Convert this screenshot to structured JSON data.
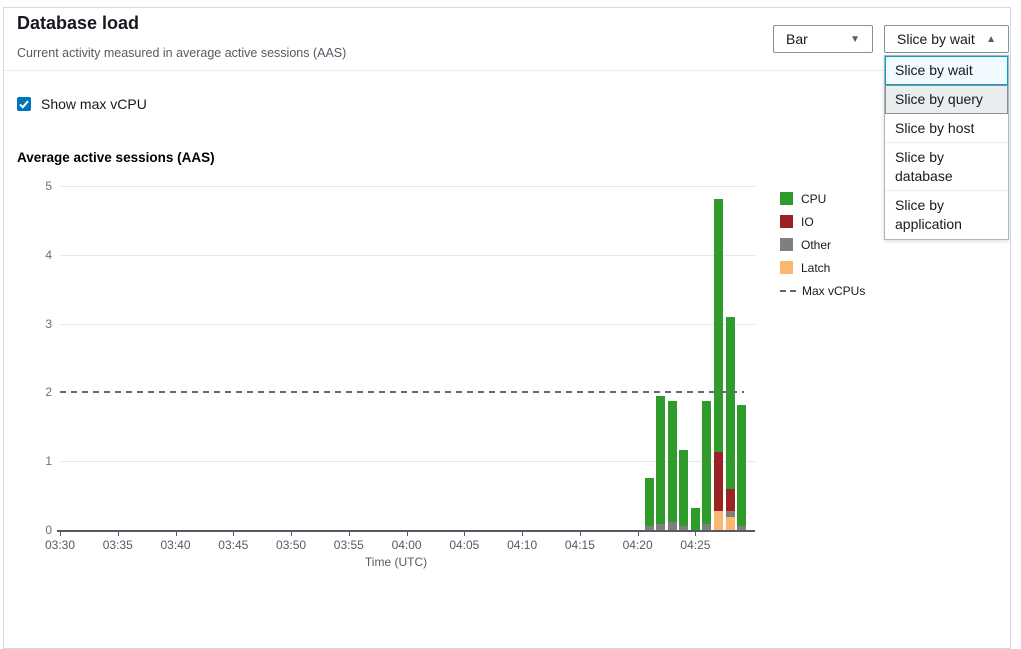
{
  "header": {
    "title": "Database load",
    "subtitle": "Current activity measured in average active sessions (AAS)"
  },
  "controls": {
    "chart_type": {
      "value": "Bar"
    },
    "slice_by": {
      "value": "Slice by wait",
      "options": [
        {
          "label": "Slice by wait",
          "state": "selected"
        },
        {
          "label": "Slice by query",
          "state": "highlighted"
        },
        {
          "label": "Slice by host",
          "state": "normal"
        },
        {
          "label": "Slice by database",
          "state": "normal"
        },
        {
          "label": "Slice by application",
          "state": "normal"
        }
      ]
    },
    "show_max_vcpu_label": "Show max vCPU",
    "show_max_vcpu_checked": true
  },
  "colors": {
    "checkbox_blue": "#0073bb",
    "selected_option_border": "#00a1c9",
    "cpu": "#2E9B2B",
    "io": "#9B2222",
    "other": "#7F7F7F",
    "latch": "#FBB66F",
    "max_vcpu_line": "#5f6b7a"
  },
  "chart_data": {
    "type": "bar",
    "title": "Average active sessions (AAS)",
    "xlabel": "Time (UTC)",
    "ylabel": "",
    "ylim": [
      0,
      5
    ],
    "yticks": [
      0,
      1,
      2,
      3,
      4,
      5
    ],
    "xticks": [
      "03:30",
      "03:35",
      "03:40",
      "03:45",
      "03:50",
      "03:55",
      "04:00",
      "04:05",
      "04:10",
      "04:15",
      "04:20",
      "04:25"
    ],
    "x_axis_start": "03:30",
    "grid": true,
    "legend_position": "right",
    "max_vcpus": 2,
    "stack_order_bottom_to_top": [
      "Latch",
      "Other",
      "IO",
      "CPU"
    ],
    "categories": [
      "04:21",
      "04:22",
      "04:23",
      "04:24",
      "04:25",
      "04:26",
      "04:27",
      "04:28",
      "04:29"
    ],
    "series": [
      {
        "name": "CPU",
        "color": "#2E9B2B",
        "values": [
          0.7,
          1.86,
          1.76,
          1.11,
          0.32,
          1.78,
          3.67,
          2.5,
          1.76
        ]
      },
      {
        "name": "IO",
        "color": "#9B2222",
        "values": [
          0,
          0,
          0,
          0,
          0,
          0,
          0.87,
          0.31,
          0
        ]
      },
      {
        "name": "Other",
        "color": "#7F7F7F",
        "values": [
          0.06,
          0.09,
          0.11,
          0.06,
          0,
          0.09,
          0,
          0.09,
          0.06
        ]
      },
      {
        "name": "Latch",
        "color": "#FBB66F",
        "values": [
          0,
          0,
          0,
          0,
          0,
          0,
          0.27,
          0.19,
          0
        ]
      }
    ],
    "legend": [
      {
        "name": "CPU",
        "color": "#2E9B2B",
        "style": "swatch"
      },
      {
        "name": "IO",
        "color": "#9B2222",
        "style": "swatch"
      },
      {
        "name": "Other",
        "color": "#7F7F7F",
        "style": "swatch"
      },
      {
        "name": "Latch",
        "color": "#FBB66F",
        "style": "swatch"
      },
      {
        "name": "Max vCPUs",
        "color": "#5f6b7a",
        "style": "dashed"
      }
    ]
  }
}
